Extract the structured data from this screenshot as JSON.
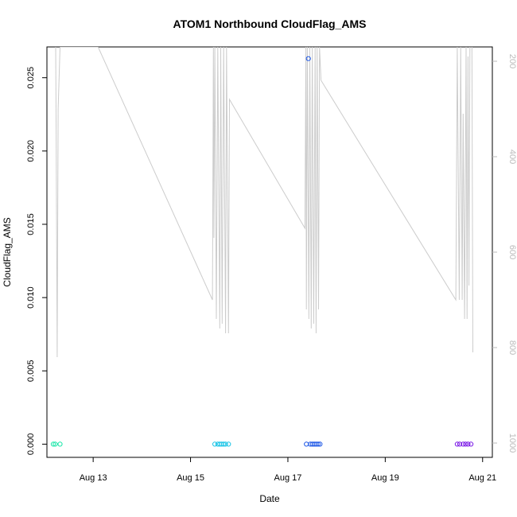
{
  "chart_data": {
    "type": "scatter",
    "title": "ATOM1 Northbound CloudFlag_AMS",
    "xlabel": "Date",
    "ylabel": "CloudFlag_AMS",
    "x_ticks": [
      "Aug 13",
      "Aug 15",
      "Aug 17",
      "Aug 19",
      "Aug 21"
    ],
    "x_tick_values": [
      13,
      15,
      17,
      19,
      21
    ],
    "xlim": [
      12.05,
      21.2
    ],
    "ylim": [
      -0.0009,
      0.0271
    ],
    "y_ticks": [
      "0.000",
      "0.005",
      "0.010",
      "0.015",
      "0.020",
      "0.025"
    ],
    "y_tick_values": [
      0,
      0.005,
      0.01,
      0.015,
      0.02,
      0.025
    ],
    "y2_ticks": [
      "200",
      "400",
      "600",
      "800",
      "1000"
    ],
    "y2_tick_values": [
      200,
      400,
      600,
      800,
      1000
    ],
    "y2lim": [
      1030,
      170
    ],
    "grid": false,
    "points": [
      {
        "x": 12.18,
        "y": 0,
        "color": "#19e6a8"
      },
      {
        "x": 12.22,
        "y": 0,
        "color": "#19e6a8"
      },
      {
        "x": 12.32,
        "y": 0,
        "color": "#19e6a8"
      },
      {
        "x": 15.5,
        "y": 0,
        "color": "#19c4e6"
      },
      {
        "x": 15.56,
        "y": 0,
        "color": "#19c4e6"
      },
      {
        "x": 15.6,
        "y": 0,
        "color": "#19c4e6"
      },
      {
        "x": 15.64,
        "y": 0,
        "color": "#19c4e6"
      },
      {
        "x": 15.68,
        "y": 0,
        "color": "#19c4e6"
      },
      {
        "x": 15.72,
        "y": 0,
        "color": "#19c4e6"
      },
      {
        "x": 15.78,
        "y": 0,
        "color": "#19c4e6"
      },
      {
        "x": 17.38,
        "y": 0,
        "color": "#1a55e6"
      },
      {
        "x": 17.42,
        "y": 0.0263,
        "color": "#1a55e6"
      },
      {
        "x": 17.46,
        "y": 0,
        "color": "#1a55e6"
      },
      {
        "x": 17.5,
        "y": 0,
        "color": "#1a55e6"
      },
      {
        "x": 17.54,
        "y": 0,
        "color": "#1a55e6"
      },
      {
        "x": 17.58,
        "y": 0,
        "color": "#1a55e6"
      },
      {
        "x": 17.62,
        "y": 0,
        "color": "#1a55e6"
      },
      {
        "x": 17.66,
        "y": 0,
        "color": "#1a55e6"
      },
      {
        "x": 20.48,
        "y": 0,
        "color": "#7a19e6"
      },
      {
        "x": 20.53,
        "y": 0,
        "color": "#7a19e6"
      },
      {
        "x": 20.6,
        "y": 0,
        "color": "#7a19e6"
      },
      {
        "x": 20.65,
        "y": 0,
        "color": "#7a19e6"
      },
      {
        "x": 20.7,
        "y": 0,
        "color": "#7a19e6"
      },
      {
        "x": 20.76,
        "y": 0,
        "color": "#7a19e6"
      }
    ],
    "secondary_line": {
      "color": "#cccccc",
      "points": [
        [
          12.23,
          170
        ],
        [
          12.24,
          350
        ],
        [
          12.26,
          820
        ],
        [
          12.28,
          300
        ],
        [
          12.32,
          170
        ],
        [
          13.1,
          170
        ],
        [
          15.45,
          700
        ],
        [
          15.47,
          170
        ],
        [
          15.48,
          570
        ],
        [
          15.5,
          170
        ],
        [
          15.53,
          740
        ],
        [
          15.56,
          170
        ],
        [
          15.6,
          760
        ],
        [
          15.62,
          170
        ],
        [
          15.65,
          750
        ],
        [
          15.68,
          170
        ],
        [
          15.72,
          770
        ],
        [
          15.74,
          170
        ],
        [
          15.78,
          770
        ],
        [
          15.8,
          280
        ],
        [
          17.35,
          550
        ],
        [
          17.37,
          170
        ],
        [
          17.38,
          720
        ],
        [
          17.4,
          170
        ],
        [
          17.43,
          740
        ],
        [
          17.45,
          170
        ],
        [
          17.48,
          760
        ],
        [
          17.5,
          170
        ],
        [
          17.53,
          750
        ],
        [
          17.56,
          170
        ],
        [
          17.58,
          770
        ],
        [
          17.6,
          170
        ],
        [
          17.63,
          720
        ],
        [
          17.65,
          170
        ],
        [
          17.68,
          240
        ],
        [
          20.45,
          700
        ],
        [
          20.48,
          170
        ],
        [
          20.52,
          700
        ],
        [
          20.55,
          170
        ],
        [
          20.58,
          700
        ],
        [
          20.6,
          310
        ],
        [
          20.63,
          740
        ],
        [
          20.66,
          170
        ],
        [
          20.68,
          740
        ],
        [
          20.7,
          190
        ],
        [
          20.72,
          670
        ],
        [
          20.74,
          170
        ],
        [
          20.78,
          160
        ],
        [
          20.8,
          810
        ]
      ]
    }
  }
}
